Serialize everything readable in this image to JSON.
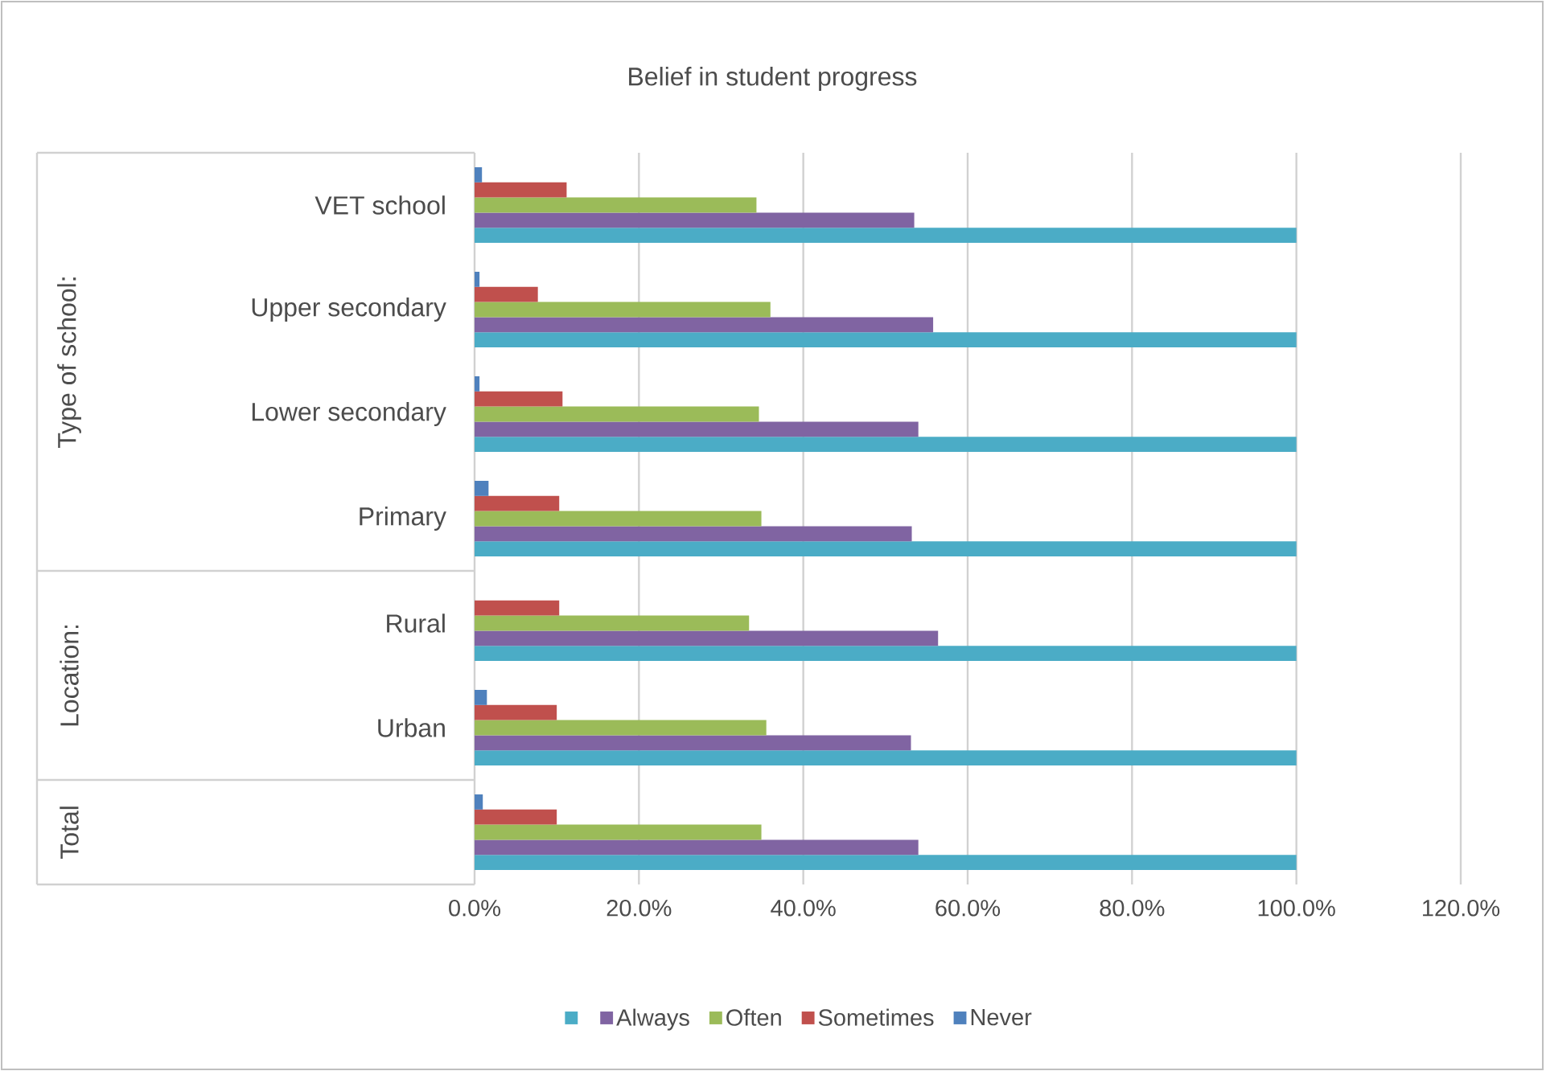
{
  "chart_data": {
    "type": "bar",
    "orientation": "horizontal",
    "title": "Belief in student progress",
    "categories": [
      "VET school",
      "Upper secondary",
      "Lower secondary",
      "Primary",
      "Rural",
      "Urban",
      null
    ],
    "series": [
      {
        "color": "#4bacc6",
        "values": [
          100,
          100,
          100,
          100,
          100,
          100,
          100
        ]
      },
      {
        "name": "Always",
        "color": "#8064a2",
        "values": [
          53.5,
          55.8,
          54.0,
          53.2,
          56.4,
          53.1,
          54.0
        ]
      },
      {
        "name": "Often",
        "color": "#9bbb59",
        "values": [
          34.3,
          36.0,
          34.6,
          34.9,
          33.4,
          35.5,
          34.9
        ]
      },
      {
        "name": "Sometimes",
        "color": "#c0504d",
        "values": [
          11.2,
          7.7,
          10.7,
          10.3,
          10.3,
          10.0,
          10.0
        ]
      },
      {
        "name": "Never",
        "color": "#4f81bd",
        "values": [
          0.9,
          0.6,
          0.6,
          1.7,
          null,
          1.5,
          1.0
        ]
      }
    ],
    "xlim": [
      0,
      120
    ],
    "xticks": [
      {
        "value": 0,
        "label": "0.0%"
      },
      {
        "value": 20,
        "label": "20.0%"
      },
      {
        "value": 40,
        "label": "40.0%"
      },
      {
        "value": 60,
        "label": "60.0%"
      },
      {
        "value": 80,
        "label": "80.0%"
      },
      {
        "value": 100,
        "label": "100.0%"
      },
      {
        "value": 120,
        "label": "120.0%"
      }
    ],
    "grid": "x",
    "legend": "bottom",
    "annotations": [
      "Type of school:",
      "Location:",
      "Total"
    ]
  }
}
